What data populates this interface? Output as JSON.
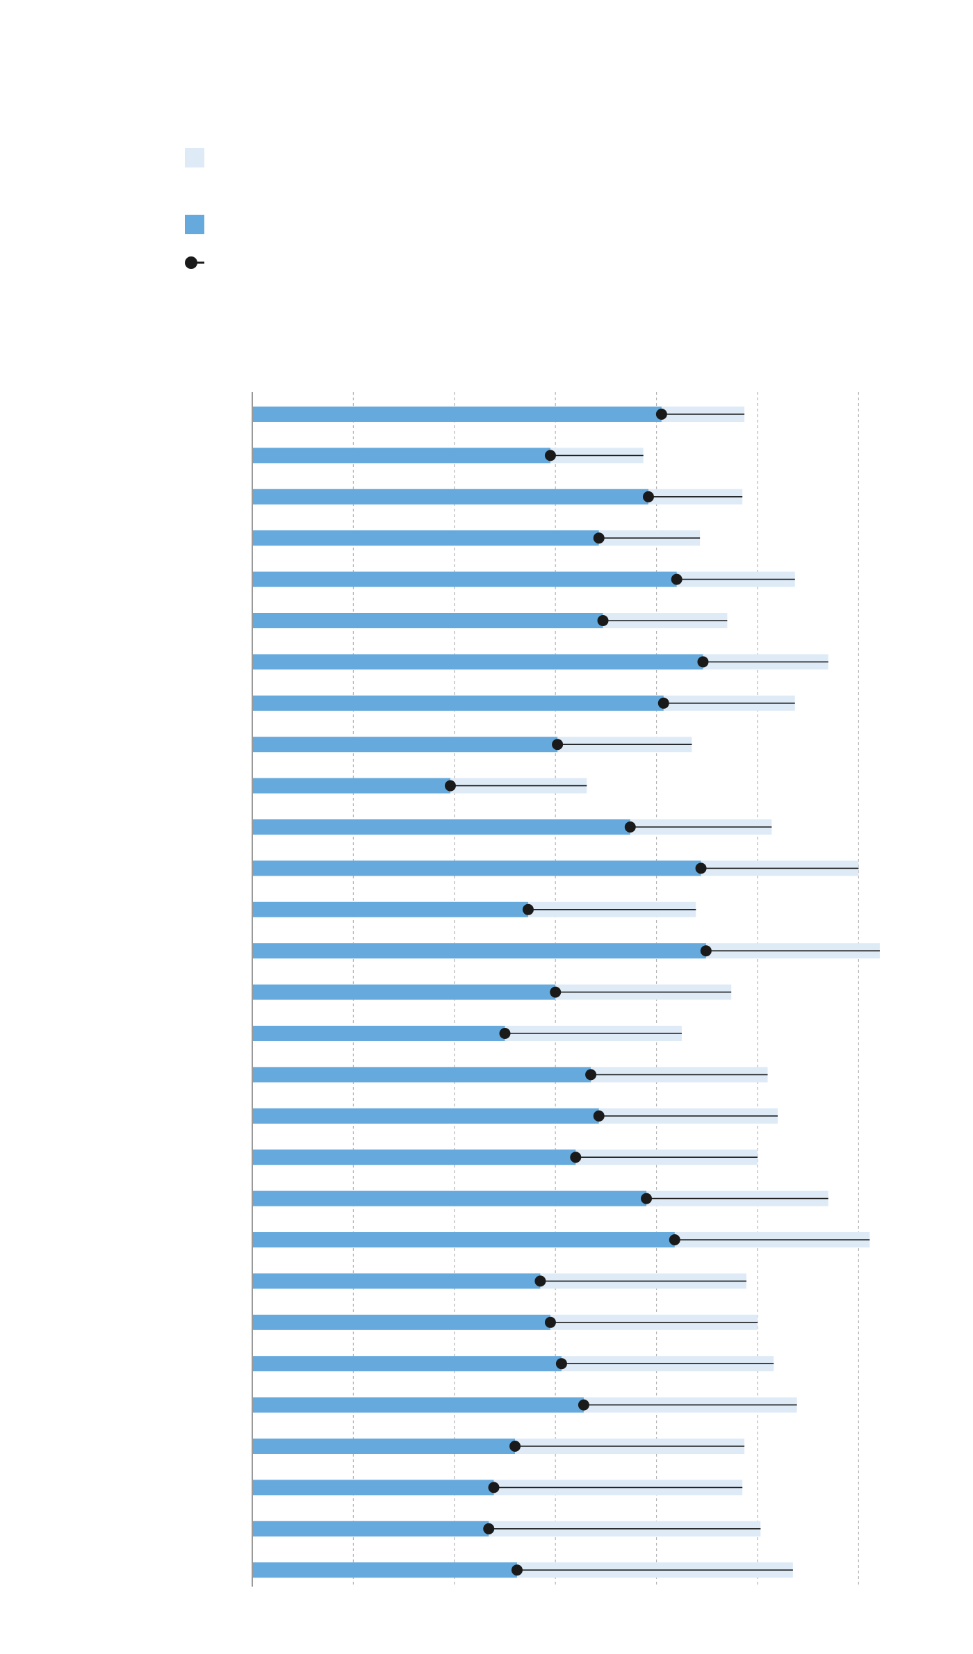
{
  "chart_data": {
    "type": "bar",
    "orientation": "horizontal",
    "title": "",
    "xlabel": "",
    "ylabel": "",
    "categories": [
      "",
      "",
      "",
      "",
      "",
      "",
      "",
      "",
      "",
      "",
      "",
      "",
      "",
      "",
      "",
      "",
      "",
      "",
      "",
      "",
      "",
      "",
      "",
      "",
      "",
      "",
      "",
      "",
      ""
    ],
    "xlim": [
      0,
      6.2
    ],
    "x_gridlines": [
      1,
      2,
      3,
      4,
      5,
      6
    ],
    "grid": "vertical dashed",
    "series": [
      {
        "role": "range",
        "color": "#deebf7",
        "values": [
          4.87,
          3.87,
          4.85,
          4.43,
          5.37,
          4.7,
          5.7,
          5.37,
          4.35,
          3.31,
          5.14,
          6.0,
          4.39,
          6.21,
          4.74,
          4.25,
          5.1,
          5.2,
          5.0,
          5.7,
          6.11,
          4.89,
          5.0,
          5.16,
          5.39,
          4.87,
          4.85,
          5.03,
          5.35
        ]
      },
      {
        "role": "value",
        "color": "#66aadd",
        "values": [
          4.05,
          2.95,
          3.92,
          3.43,
          4.2,
          3.47,
          4.46,
          4.07,
          3.02,
          1.96,
          3.74,
          4.44,
          2.73,
          4.49,
          3.0,
          2.5,
          3.35,
          3.43,
          3.2,
          3.9,
          4.18,
          2.85,
          2.95,
          3.06,
          3.28,
          2.6,
          2.39,
          2.34,
          2.62
        ]
      },
      {
        "role": "marker",
        "color": "#1a1a1a",
        "values": [
          4.05,
          2.95,
          3.92,
          3.43,
          4.2,
          3.47,
          4.46,
          4.07,
          3.02,
          1.96,
          3.74,
          4.44,
          2.73,
          4.49,
          3.0,
          2.5,
          3.35,
          3.43,
          3.2,
          3.9,
          4.18,
          2.85,
          2.95,
          3.06,
          3.28,
          2.6,
          2.39,
          2.34,
          2.62
        ]
      }
    ],
    "legend": {
      "placement": "top-left",
      "entries": [
        {
          "kind": "range",
          "color": "#deebf7",
          "label": ""
        },
        {
          "kind": "value",
          "color": "#66aadd",
          "label": ""
        },
        {
          "kind": "marker",
          "color": "#1a1a1a",
          "label": ""
        }
      ]
    },
    "colors": {
      "axis": "#999999",
      "grid": "#b3b3b3",
      "range": "#deebf7",
      "value": "#66aadd",
      "marker": "#1a1a1a"
    }
  }
}
